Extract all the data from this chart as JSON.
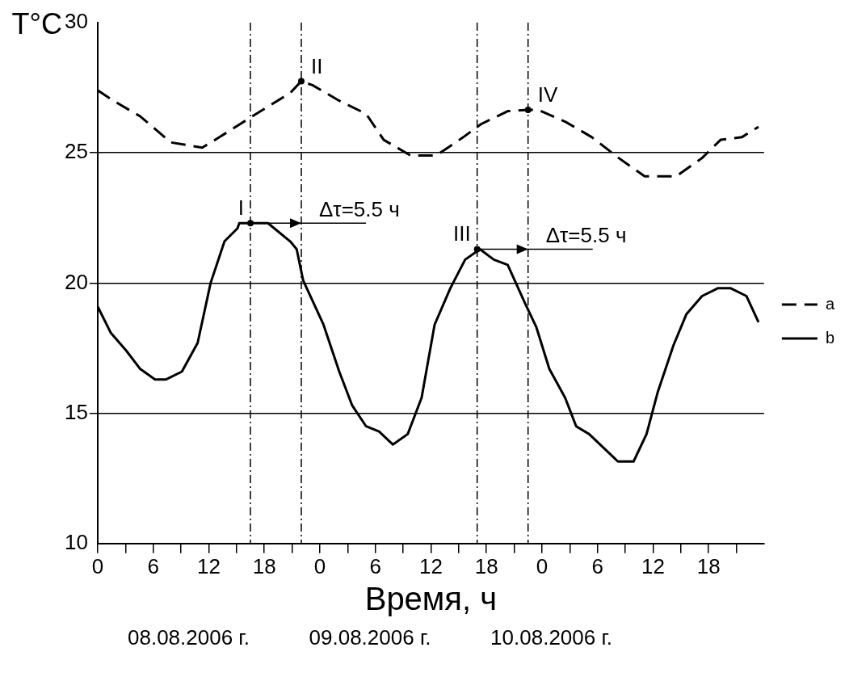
{
  "chart_data": {
    "type": "line",
    "ylabel": "T°C",
    "xlabel": "Время, ч",
    "xlim": [
      "2006-08-08T00:00",
      "2006-08-11T00:00"
    ],
    "ylim": [
      10,
      30
    ],
    "yticks": [
      10,
      15,
      20,
      25,
      30
    ],
    "xticks": [
      {
        "value": "2006-08-08T00:00",
        "label": "0"
      },
      {
        "value": "2006-08-08T03:00",
        "label": null
      },
      {
        "value": "2006-08-08T06:00",
        "label": "6"
      },
      {
        "value": "2006-08-08T09:00",
        "label": null
      },
      {
        "value": "2006-08-08T12:00",
        "label": "12"
      },
      {
        "value": "2006-08-08T15:00",
        "label": null
      },
      {
        "value": "2006-08-08T18:00",
        "label": "18"
      },
      {
        "value": "2006-08-08T21:00",
        "label": null
      },
      {
        "value": "2006-08-09T00:00",
        "label": "0"
      },
      {
        "value": "2006-08-09T03:00",
        "label": null
      },
      {
        "value": "2006-08-09T06:00",
        "label": "6"
      },
      {
        "value": "2006-08-09T09:00",
        "label": null
      },
      {
        "value": "2006-08-09T12:00",
        "label": "12"
      },
      {
        "value": "2006-08-09T15:00",
        "label": null
      },
      {
        "value": "2006-08-09T18:00",
        "label": "18"
      },
      {
        "value": "2006-08-09T21:00",
        "label": null
      },
      {
        "value": "2006-08-10T00:00",
        "label": "0"
      },
      {
        "value": "2006-08-10T03:00",
        "label": null
      },
      {
        "value": "2006-08-10T06:00",
        "label": "6"
      },
      {
        "value": "2006-08-10T09:00",
        "label": null
      },
      {
        "value": "2006-08-10T12:00",
        "label": "12"
      },
      {
        "value": "2006-08-10T15:00",
        "label": null
      },
      {
        "value": "2006-08-10T18:00",
        "label": "18"
      },
      {
        "value": "2006-08-10T21:00",
        "label": null
      }
    ],
    "grid": "y",
    "legend": "right",
    "marker": "none",
    "series": [
      {
        "name": "a",
        "color": "#000000",
        "line_style": "dashed",
        "x": [
          "2006-08-08T00:00",
          "2006-08-08T01:42",
          "2006-08-08T04:36",
          "2006-08-08T07:54",
          "2006-08-08T11:18",
          "2006-08-08T12:42",
          "2006-08-08T16:42",
          "2006-08-08T20:48",
          "2006-08-08T22:00",
          "2006-08-08T23:12",
          "2006-08-09T02:06",
          "2006-08-09T05:00",
          "2006-08-09T06:54",
          "2006-08-09T09:48",
          "2006-08-09T12:36",
          "2006-08-09T15:30",
          "2006-08-09T17:24",
          "2006-08-09T20:18",
          "2006-08-09T22:30",
          "2006-08-09T23:36",
          "2006-08-10T02:30",
          "2006-08-10T05:24",
          "2006-08-10T08:18",
          "2006-08-10T11:06",
          "2006-08-10T14:30",
          "2006-08-10T17:18",
          "2006-08-10T19:18",
          "2006-08-10T21:36",
          "2006-08-10T23:24"
        ],
        "values": [
          27.4,
          27,
          26.4,
          25.4,
          25.2,
          25.5,
          26.4,
          27.3,
          27.75,
          27.6,
          27,
          26.5,
          25.5,
          24.9,
          24.9,
          25.6,
          26.1,
          26.6,
          26.65,
          26.65,
          26.2,
          25.6,
          24.8,
          24.1,
          24.1,
          24.8,
          25.5,
          25.6,
          26
        ]
      },
      {
        "name": "b",
        "color": "#000000",
        "line_style": "solid",
        "x": [
          "2006-08-08T00:00",
          "2006-08-08T01:24",
          "2006-08-08T03:06",
          "2006-08-08T04:36",
          "2006-08-08T06:12",
          "2006-08-08T07:24",
          "2006-08-08T09:06",
          "2006-08-08T10:48",
          "2006-08-08T12:12",
          "2006-08-08T13:42",
          "2006-08-08T15:06",
          "2006-08-08T15:18",
          "2006-08-08T16:30",
          "2006-08-08T18:24",
          "2006-08-08T20:48",
          "2006-08-08T21:30",
          "2006-08-08T22:12",
          "2006-08-09T00:24",
          "2006-08-09T02:06",
          "2006-08-09T03:30",
          "2006-08-09T05:00",
          "2006-08-09T06:24",
          "2006-08-09T07:54",
          "2006-08-09T09:30",
          "2006-08-09T11:00",
          "2006-08-09T12:24",
          "2006-08-09T14:06",
          "2006-08-09T15:42",
          "2006-08-09T17:18",
          "2006-08-09T18:48",
          "2006-08-09T20:18",
          "2006-08-09T22:12",
          "2006-08-09T23:24",
          "2006-08-10T00:48",
          "2006-08-10T02:30",
          "2006-08-10T03:42",
          "2006-08-10T05:06",
          "2006-08-10T08:12",
          "2006-08-10T09:54",
          "2006-08-10T11:18",
          "2006-08-10T12:30",
          "2006-08-10T14:12",
          "2006-08-10T15:36",
          "2006-08-10T17:18",
          "2006-08-10T19:00",
          "2006-08-10T20:24",
          "2006-08-10T22:06",
          "2006-08-10T23:24"
        ],
        "values": [
          19.1,
          18.1,
          17.4,
          16.7,
          16.3,
          16.3,
          16.6,
          17.7,
          20,
          21.6,
          22.1,
          22.3,
          22.3,
          22.3,
          21.6,
          21.3,
          20.1,
          18.4,
          16.6,
          15.3,
          14.5,
          14.3,
          13.8,
          14.2,
          15.6,
          18.4,
          19.8,
          20.9,
          21.3,
          20.9,
          20.7,
          19.2,
          18.3,
          16.7,
          15.6,
          14.5,
          14.2,
          13.15,
          13.15,
          14.2,
          15.8,
          17.6,
          18.8,
          19.5,
          19.8,
          19.8,
          19.5,
          18.5
        ]
      }
    ],
    "ref_lines": [
      {
        "axis": "x",
        "value": "2006-08-08T16:30",
        "line_style": "dashdot"
      },
      {
        "axis": "x",
        "value": "2006-08-08T22:00",
        "line_style": "dashdot"
      },
      {
        "axis": "x",
        "value": "2006-08-09T17:00",
        "line_style": "dashdot"
      },
      {
        "axis": "x",
        "value": "2006-08-09T22:30",
        "line_style": "dashdot"
      }
    ],
    "annotations": [
      {
        "text": "I",
        "x": "2006-08-08T16:30",
        "y": 22.3
      },
      {
        "text": "II",
        "x": "2006-08-08T22:00",
        "y": 27.75
      },
      {
        "text": "Δτ=5.5 ч",
        "x": "2006-08-08T22:00",
        "y": 22.3
      },
      {
        "text": "III",
        "x": "2006-08-09T17:00",
        "y": 21.3
      },
      {
        "text": "IV",
        "x": "2006-08-09T22:30",
        "y": 26.65
      },
      {
        "text": "Δτ=5.5 ч",
        "x": "2006-08-09T22:30",
        "y": 21.3
      },
      "08.08.2006 г.",
      "09.08.2006 г.",
      "10.08.2006 г."
    ]
  }
}
